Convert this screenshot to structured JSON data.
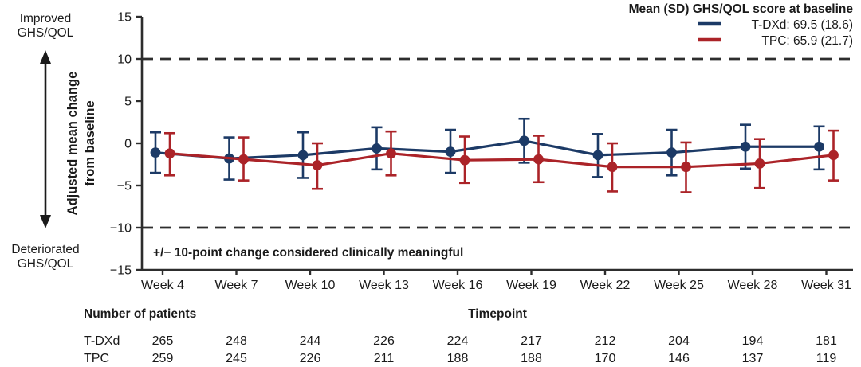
{
  "colors": {
    "tdxd": "#1c3a66",
    "tpc": "#ab2328",
    "axis": "#2d2d2d",
    "reference_line": "#2d2d2d",
    "text": "#1a1a1a"
  },
  "left_panel": {
    "improved_line1": "Improved",
    "improved_line2": "GHS/QOL",
    "deteriorated_line1": "Deteriorated",
    "deteriorated_line2": "GHS/QOL",
    "arrow_icon": "double-headed-vertical-arrow"
  },
  "y_axis_title_line1": "Adjusted mean change",
  "y_axis_title_line2": "from baseline",
  "legend": {
    "title": "Mean (SD) GHS/QOL score at baseline",
    "items": [
      {
        "label": "T-DXd: 69.5 (18.6)",
        "color": "#1c3a66"
      },
      {
        "label": "TPC: 65.9 (21.7)",
        "color": "#ab2328"
      }
    ]
  },
  "annotation": "+/− 10-point change considered clinically meaningful",
  "chart_data": {
    "type": "line",
    "title": "",
    "xlabel": "Timepoint",
    "ylabel": "Adjusted mean change from baseline",
    "ylim": [
      -15,
      15
    ],
    "grid": false,
    "legend_position": "top-right",
    "reference_lines": [
      10,
      -10
    ],
    "yticks": [
      {
        "v": 15,
        "label": "15"
      },
      {
        "v": 10,
        "label": "10"
      },
      {
        "v": 5,
        "label": "5"
      },
      {
        "v": 0,
        "label": "0"
      },
      {
        "v": -5,
        "label": "−5"
      },
      {
        "v": -10,
        "label": "−10"
      },
      {
        "v": -15,
        "label": "−15"
      }
    ],
    "categories": [
      "Week 4",
      "Week 7",
      "Week 10",
      "Week 13",
      "Week 16",
      "Week 19",
      "Week 22",
      "Week 25",
      "Week 28",
      "Week 31"
    ],
    "series": [
      {
        "name": "T-DXd",
        "color": "#1c3a66",
        "values": [
          -1.1,
          -1.8,
          -1.4,
          -0.6,
          -1.0,
          0.3,
          -1.4,
          -1.1,
          -0.4,
          -0.4
        ],
        "ci_upper": [
          1.3,
          0.7,
          1.3,
          1.9,
          1.6,
          2.9,
          1.1,
          1.6,
          2.2,
          2.0
        ],
        "ci_lower": [
          -3.5,
          -4.3,
          -4.1,
          -3.1,
          -3.5,
          -2.3,
          -4.0,
          -3.8,
          -3.0,
          -3.1
        ]
      },
      {
        "name": "TPC",
        "color": "#ab2328",
        "values": [
          -1.2,
          -1.9,
          -2.6,
          -1.2,
          -2.0,
          -1.9,
          -2.8,
          -2.8,
          -2.4,
          -1.4
        ],
        "ci_upper": [
          1.2,
          0.7,
          0.0,
          1.4,
          0.8,
          0.9,
          0.0,
          0.1,
          0.5,
          1.5
        ],
        "ci_lower": [
          -3.8,
          -4.4,
          -5.4,
          -3.8,
          -4.7,
          -4.6,
          -5.7,
          -5.8,
          -5.3,
          -4.4
        ]
      }
    ]
  },
  "patients_table": {
    "title": "Number of patients",
    "x_title": "Timepoint",
    "rows": [
      {
        "label": "T-DXd",
        "color": "#1c3a66",
        "values": [
          "265",
          "248",
          "244",
          "226",
          "224",
          "217",
          "212",
          "204",
          "194",
          "181"
        ]
      },
      {
        "label": "TPC",
        "color": "#ab2328",
        "values": [
          "259",
          "245",
          "226",
          "211",
          "188",
          "188",
          "170",
          "146",
          "137",
          "119"
        ]
      }
    ]
  }
}
